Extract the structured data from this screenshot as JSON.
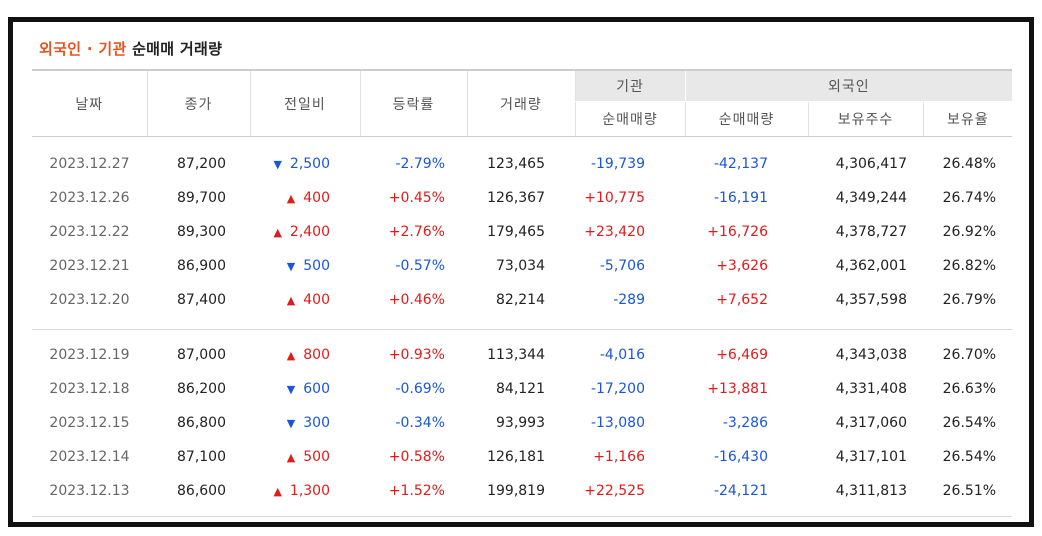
{
  "title": {
    "accent": "외국인 · 기관",
    "rest": "순매매 거래량"
  },
  "headers": {
    "date": "날짜",
    "close": "종가",
    "change": "전일비",
    "rate": "등락률",
    "volume": "거래량",
    "institution": "기관",
    "foreign": "외국인",
    "inst_net": "순매매량",
    "foreign_net": "순매매량",
    "holdings": "보유주수",
    "ratio": "보유율"
  },
  "rows_group1": [
    {
      "date": "2023.12.27",
      "close": "87,200",
      "dir": "down",
      "change": "2,500",
      "rate": "-2.79%",
      "volume": "123,465",
      "inst_net": "-19,739",
      "foreign_net": "-42,137",
      "holdings": "4,306,417",
      "ratio": "26.48%"
    },
    {
      "date": "2023.12.26",
      "close": "89,700",
      "dir": "up",
      "change": "400",
      "rate": "+0.45%",
      "volume": "126,367",
      "inst_net": "+10,775",
      "foreign_net": "-16,191",
      "holdings": "4,349,244",
      "ratio": "26.74%"
    },
    {
      "date": "2023.12.22",
      "close": "89,300",
      "dir": "up",
      "change": "2,400",
      "rate": "+2.76%",
      "volume": "179,465",
      "inst_net": "+23,420",
      "foreign_net": "+16,726",
      "holdings": "4,378,727",
      "ratio": "26.92%"
    },
    {
      "date": "2023.12.21",
      "close": "86,900",
      "dir": "down",
      "change": "500",
      "rate": "-0.57%",
      "volume": "73,034",
      "inst_net": "-5,706",
      "foreign_net": "+3,626",
      "holdings": "4,362,001",
      "ratio": "26.82%"
    },
    {
      "date": "2023.12.20",
      "close": "87,400",
      "dir": "up",
      "change": "400",
      "rate": "+0.46%",
      "volume": "82,214",
      "inst_net": "-289",
      "foreign_net": "+7,652",
      "holdings": "4,357,598",
      "ratio": "26.79%"
    }
  ],
  "rows_group2": [
    {
      "date": "2023.12.19",
      "close": "87,000",
      "dir": "up",
      "change": "800",
      "rate": "+0.93%",
      "volume": "113,344",
      "inst_net": "-4,016",
      "foreign_net": "+6,469",
      "holdings": "4,343,038",
      "ratio": "26.70%"
    },
    {
      "date": "2023.12.18",
      "close": "86,200",
      "dir": "down",
      "change": "600",
      "rate": "-0.69%",
      "volume": "84,121",
      "inst_net": "-17,200",
      "foreign_net": "+13,881",
      "holdings": "4,331,408",
      "ratio": "26.63%"
    },
    {
      "date": "2023.12.15",
      "close": "86,800",
      "dir": "down",
      "change": "300",
      "rate": "-0.34%",
      "volume": "93,993",
      "inst_net": "-13,080",
      "foreign_net": "-3,286",
      "holdings": "4,317,060",
      "ratio": "26.54%"
    },
    {
      "date": "2023.12.14",
      "close": "87,100",
      "dir": "up",
      "change": "500",
      "rate": "+0.58%",
      "volume": "126,181",
      "inst_net": "+1,166",
      "foreign_net": "-16,430",
      "holdings": "4,317,101",
      "ratio": "26.54%"
    },
    {
      "date": "2023.12.13",
      "close": "86,600",
      "dir": "up",
      "change": "1,300",
      "rate": "+1.52%",
      "volume": "199,819",
      "inst_net": "+22,525",
      "foreign_net": "-24,121",
      "holdings": "4,311,813",
      "ratio": "26.51%"
    }
  ],
  "icons": {
    "up": "triangle-up-icon",
    "down": "triangle-down-icon"
  },
  "colors": {
    "up": "#e01b1b",
    "down": "#1a56db",
    "accent": "#e8541f"
  }
}
